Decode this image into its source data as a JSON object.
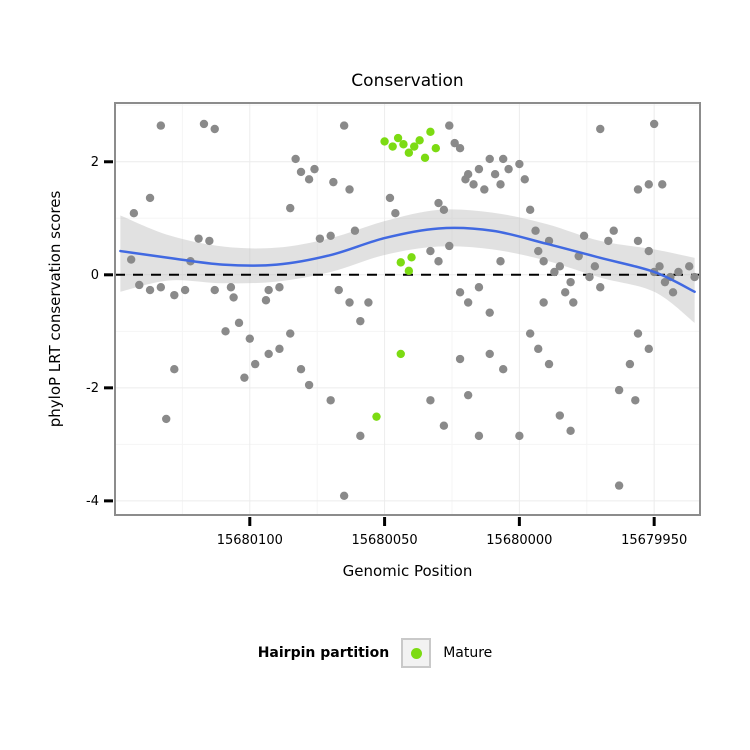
{
  "colors": {
    "point_gray": "#8A8A8A",
    "mature_green": "#7CDB12",
    "smooth_blue": "#4169E1",
    "ribbon_gray": "#BDBDBD",
    "panel_border": "#8C8C8C",
    "grid_major": "#ECECEC",
    "grid_minor": "#F5F5F5"
  },
  "chart_data": {
    "type": "scatter",
    "title": "Conservation",
    "xlabel": "Genomic Position",
    "ylabel": "phyloP LRT conservation scores",
    "x_axis": {
      "reversed": true,
      "domain": [
        15680150,
        15679933
      ],
      "ticks": [
        15680100,
        15680050,
        15680000,
        15679950
      ],
      "tick_labels": [
        "15680100",
        "15680050",
        "15680000",
        "15679950"
      ],
      "minor_ticks": [
        15680125,
        15680075,
        15680025,
        15679975
      ]
    },
    "y_axis": {
      "domain": [
        -4.25,
        3.04
      ],
      "ticks": [
        2,
        0,
        -2,
        -4
      ],
      "tick_labels": [
        "2",
        "0",
        "-2",
        "-4"
      ],
      "minor_ticks": [
        3,
        1,
        -1,
        -3
      ]
    },
    "reference_line": {
      "y": 0,
      "style": "dashed",
      "color": "#000000"
    },
    "series": [
      {
        "name": "gray",
        "color": "#8A8A8A",
        "points": [
          [
            15680133,
            2.64
          ],
          [
            15680117,
            2.67
          ],
          [
            15680113,
            2.58
          ],
          [
            15680137,
            1.36
          ],
          [
            15680143,
            1.09
          ],
          [
            15680144,
            0.27
          ],
          [
            15680141,
            -0.18
          ],
          [
            15680137,
            -0.27
          ],
          [
            15680133,
            -0.22
          ],
          [
            15680128,
            -0.36
          ],
          [
            15680124,
            -0.27
          ],
          [
            15680122,
            0.24
          ],
          [
            15680119,
            0.64
          ],
          [
            15680115,
            0.6
          ],
          [
            15680113,
            -0.27
          ],
          [
            15680107,
            -0.22
          ],
          [
            15680106,
            -0.4
          ],
          [
            15680109,
            -1.0
          ],
          [
            15680104,
            -0.85
          ],
          [
            15680100,
            -1.13
          ],
          [
            15680131,
            -2.55
          ],
          [
            15680128,
            -1.67
          ],
          [
            15680102,
            -1.82
          ],
          [
            15680098,
            -1.58
          ],
          [
            15680094,
            -0.45
          ],
          [
            15680093,
            -0.27
          ],
          [
            15680089,
            -0.22
          ],
          [
            15680085,
            1.18
          ],
          [
            15680083,
            2.05
          ],
          [
            15680081,
            1.82
          ],
          [
            15680078,
            1.69
          ],
          [
            15680076,
            1.87
          ],
          [
            15680074,
            0.64
          ],
          [
            15680070,
            0.69
          ],
          [
            15680069,
            1.64
          ],
          [
            15680065,
            2.64
          ],
          [
            15680063,
            1.51
          ],
          [
            15680061,
            0.78
          ],
          [
            15680067,
            -0.27
          ],
          [
            15680063,
            -0.49
          ],
          [
            15680059,
            -0.82
          ],
          [
            15680093,
            -1.4
          ],
          [
            15680089,
            -1.31
          ],
          [
            15680085,
            -1.04
          ],
          [
            15680081,
            -1.67
          ],
          [
            15680078,
            -1.95
          ],
          [
            15680070,
            -2.22
          ],
          [
            15680065,
            -3.91
          ],
          [
            15680059,
            -2.85
          ],
          [
            15680056,
            -0.49
          ],
          [
            15680048,
            1.36
          ],
          [
            15680046,
            1.09
          ],
          [
            15680030,
            1.27
          ],
          [
            15680028,
            1.15
          ],
          [
            15680026,
            2.64
          ],
          [
            15680024,
            2.33
          ],
          [
            15680022,
            2.24
          ],
          [
            15680020,
            1.69
          ],
          [
            15680019,
            1.78
          ],
          [
            15680017,
            1.6
          ],
          [
            15680015,
            1.87
          ],
          [
            15680013,
            1.51
          ],
          [
            15680011,
            2.05
          ],
          [
            15680009,
            1.78
          ],
          [
            15680007,
            1.6
          ],
          [
            15680006,
            2.05
          ],
          [
            15680004,
            1.87
          ],
          [
            15680033,
            0.42
          ],
          [
            15680030,
            0.24
          ],
          [
            15680026,
            0.51
          ],
          [
            15680022,
            -0.31
          ],
          [
            15680019,
            -0.49
          ],
          [
            15680015,
            -0.22
          ],
          [
            15680011,
            -0.67
          ],
          [
            15680007,
            0.24
          ],
          [
            15680033,
            -2.22
          ],
          [
            15680028,
            -2.67
          ],
          [
            15680022,
            -1.49
          ],
          [
            15680019,
            -2.13
          ],
          [
            15680015,
            -2.85
          ],
          [
            15680011,
            -1.4
          ],
          [
            15680006,
            -1.67
          ],
          [
            15680000,
            1.96
          ],
          [
            15679998,
            1.69
          ],
          [
            15679996,
            1.15
          ],
          [
            15679994,
            0.78
          ],
          [
            15679993,
            0.42
          ],
          [
            15679991,
            0.24
          ],
          [
            15679989,
            0.6
          ],
          [
            15679987,
            0.05
          ],
          [
            15679985,
            0.15
          ],
          [
            15679983,
            -0.31
          ],
          [
            15679981,
            -0.13
          ],
          [
            15679980,
            -0.49
          ],
          [
            15679978,
            0.33
          ],
          [
            15679976,
            0.69
          ],
          [
            15679974,
            -0.04
          ],
          [
            15679972,
            0.15
          ],
          [
            15679970,
            -0.22
          ],
          [
            15679996,
            -1.04
          ],
          [
            15679993,
            -1.31
          ],
          [
            15679989,
            -1.58
          ],
          [
            15679985,
            -2.49
          ],
          [
            15679981,
            -2.76
          ],
          [
            15680000,
            -2.85
          ],
          [
            15679991,
            -0.49
          ],
          [
            15679967,
            0.6
          ],
          [
            15679965,
            0.78
          ],
          [
            15679970,
            2.58
          ],
          [
            15679950,
            2.67
          ],
          [
            15679956,
            1.51
          ],
          [
            15679952,
            1.6
          ],
          [
            15679947,
            1.6
          ],
          [
            15679956,
            0.6
          ],
          [
            15679952,
            0.42
          ],
          [
            15679950,
            0.05
          ],
          [
            15679948,
            0.15
          ],
          [
            15679946,
            -0.13
          ],
          [
            15679944,
            -0.04
          ],
          [
            15679943,
            -0.31
          ],
          [
            15679941,
            0.05
          ],
          [
            15679956,
            -1.04
          ],
          [
            15679952,
            -1.31
          ],
          [
            15679959,
            -1.58
          ],
          [
            15679963,
            -2.04
          ],
          [
            15679957,
            -2.22
          ],
          [
            15679963,
            -3.73
          ],
          [
            15679937,
            0.15
          ],
          [
            15679935,
            -0.04
          ]
        ]
      },
      {
        "name": "Mature",
        "color": "#7CDB12",
        "points": [
          [
            15680050,
            2.36
          ],
          [
            15680047,
            2.27
          ],
          [
            15680045,
            2.42
          ],
          [
            15680043,
            2.31
          ],
          [
            15680041,
            2.16
          ],
          [
            15680039,
            2.27
          ],
          [
            15680037,
            2.38
          ],
          [
            15680033,
            2.53
          ],
          [
            15680031,
            2.24
          ],
          [
            15680035,
            2.07
          ],
          [
            15680044,
            0.22
          ],
          [
            15680041,
            0.07
          ],
          [
            15680040,
            0.31
          ],
          [
            15680044,
            -1.4
          ],
          [
            15680053,
            -2.51
          ]
        ]
      }
    ],
    "smooth": {
      "color": "#4169E1",
      "ribbon_color": "#BDBDBD",
      "ribbon_opacity": 0.45,
      "x": [
        15680148,
        15680130,
        15680110,
        15680090,
        15680070,
        15680050,
        15680030,
        15680010,
        15679990,
        15679970,
        15679950,
        15679935
      ],
      "fit": [
        0.42,
        0.3,
        0.18,
        0.18,
        0.35,
        0.65,
        0.82,
        0.78,
        0.55,
        0.3,
        0.05,
        -0.3
      ],
      "lower": [
        -0.3,
        -0.1,
        -0.15,
        -0.12,
        0.05,
        0.35,
        0.5,
        0.45,
        0.25,
        -0.05,
        -0.3,
        -0.85
      ],
      "upper": [
        1.05,
        0.7,
        0.5,
        0.48,
        0.65,
        0.95,
        1.15,
        1.1,
        0.9,
        0.6,
        0.45,
        0.3
      ]
    },
    "legend": {
      "title": "Hairpin partition",
      "items": [
        {
          "label": "Mature",
          "color": "#7CDB12"
        }
      ]
    }
  }
}
